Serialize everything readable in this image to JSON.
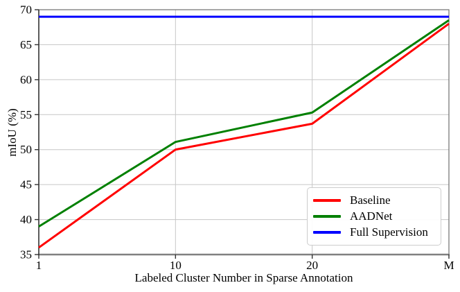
{
  "chart_data": {
    "type": "line",
    "title": "",
    "xlabel": "Labeled Cluster Number in Sparse Annotation",
    "ylabel": "mIoU (%)",
    "categories": [
      "1",
      "10",
      "20",
      "M"
    ],
    "ylim": [
      35,
      70
    ],
    "yticks": [
      35,
      40,
      45,
      50,
      55,
      60,
      65,
      70
    ],
    "grid": true,
    "legend_position": "lower right",
    "series": [
      {
        "name": "Baseline",
        "color": "#ff0000",
        "values": [
          36.0,
          50.0,
          53.7,
          68.0
        ]
      },
      {
        "name": "AADNet",
        "color": "#008000",
        "values": [
          39.0,
          51.1,
          55.3,
          68.5
        ]
      },
      {
        "name": "Full Supervision",
        "color": "#0000ff",
        "values": [
          69.0,
          69.0,
          69.0,
          69.0
        ]
      }
    ],
    "style": {
      "grid_color": "#c6c6c6",
      "spine_color": "#6e6e6e",
      "bottom_spine_color": "#808080",
      "tick_color": "#333333",
      "line_width": 3
    }
  }
}
